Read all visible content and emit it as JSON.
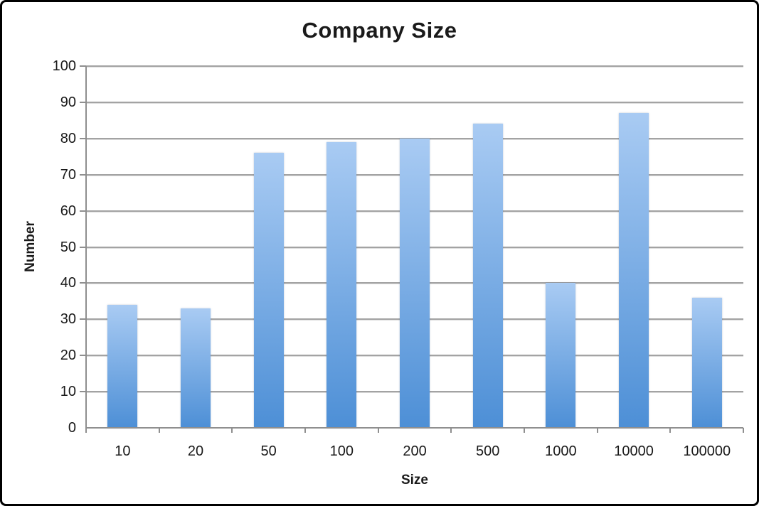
{
  "chart_data": {
    "type": "bar",
    "title": "Company Size",
    "xlabel": "Size",
    "ylabel": "Number",
    "categories": [
      "10",
      "20",
      "50",
      "100",
      "200",
      "500",
      "1000",
      "10000",
      "100000"
    ],
    "values": [
      34,
      33,
      76,
      79,
      80,
      84,
      40,
      87,
      36
    ],
    "ylim": [
      0,
      100
    ],
    "ytick_step": 10,
    "grid": true,
    "legend": false
  },
  "colors": {
    "bar_gradient_top": "#a9cbf3",
    "bar_gradient_bottom": "#4d8fd6",
    "gridline": "#a3a3a3",
    "gridline_shadow": "#dcdcdc",
    "axis": "#8f8f8f",
    "text": "#1a1a1a",
    "frame_border": "#000000",
    "background": "#ffffff"
  }
}
